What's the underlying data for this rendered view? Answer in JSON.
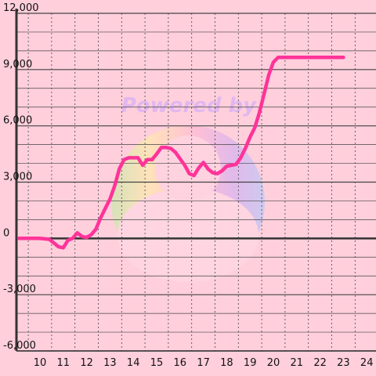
{
  "chart_data": {
    "type": "line",
    "xlim": [
      10,
      24
    ],
    "ylim": [
      -6000,
      12000
    ],
    "x_ticks": [
      10,
      11,
      12,
      13,
      14,
      15,
      16,
      17,
      18,
      19,
      20,
      21,
      22,
      23,
      24
    ],
    "y_ticks": [
      -6000,
      -3000,
      0,
      3000,
      6000,
      9000,
      12000
    ],
    "y_tick_labels": [
      "-6,000",
      "-3,000",
      "0",
      "3,000",
      "6,000",
      "9,000",
      "12,000"
    ],
    "grid": true,
    "series": [
      {
        "color": "#ff3399",
        "x": [
          9.1,
          10.0,
          10.4,
          10.6,
          10.8,
          11.0,
          11.2,
          11.4,
          11.6,
          11.8,
          12.0,
          12.2,
          12.4,
          12.6,
          12.8,
          13.0,
          13.2,
          13.4,
          13.6,
          13.8,
          14.0,
          14.2,
          14.4,
          14.6,
          14.8,
          15.0,
          15.2,
          15.4,
          15.6,
          15.8,
          16.0,
          16.2,
          16.4,
          16.6,
          16.8,
          17.0,
          17.2,
          17.4,
          17.6,
          17.8,
          18.0,
          18.2,
          18.4,
          18.6,
          18.8,
          19.0,
          19.2,
          19.4,
          19.6,
          19.8,
          20.0,
          20.2,
          20.4,
          20.6,
          20.8,
          21.0,
          21.2,
          21.4,
          21.6,
          21.8,
          22.0,
          22.2,
          22.4,
          22.6,
          22.8,
          23.0
        ],
        "y": [
          0,
          0,
          -50,
          -250,
          -450,
          -500,
          -100,
          0,
          300,
          100,
          50,
          200,
          500,
          1100,
          1600,
          2100,
          2800,
          3700,
          4200,
          4300,
          4300,
          4300,
          3900,
          4200,
          4200,
          4500,
          4850,
          4850,
          4800,
          4600,
          4250,
          3900,
          3450,
          3350,
          3750,
          4050,
          3700,
          3500,
          3450,
          3600,
          3850,
          3900,
          3950,
          4300,
          4800,
          5400,
          5900,
          6700,
          7700,
          8700,
          9400,
          9650,
          9650,
          9650,
          9650,
          9650,
          9650,
          9650,
          9650,
          9650,
          9650,
          9650,
          9650,
          9650,
          9650,
          9650
        ]
      }
    ]
  },
  "watermark": {
    "text": "Powered by",
    "colors": {
      "purple": "#b49cf5",
      "pink": "#ff9fbf",
      "yellow": "#fff3a0",
      "green": "#b8f0a0",
      "blue": "#a7c8ff"
    }
  },
  "colors": {
    "background": "#ffcfdc",
    "axis": "#333333",
    "grid": "#444444",
    "line": "#ff3399"
  }
}
